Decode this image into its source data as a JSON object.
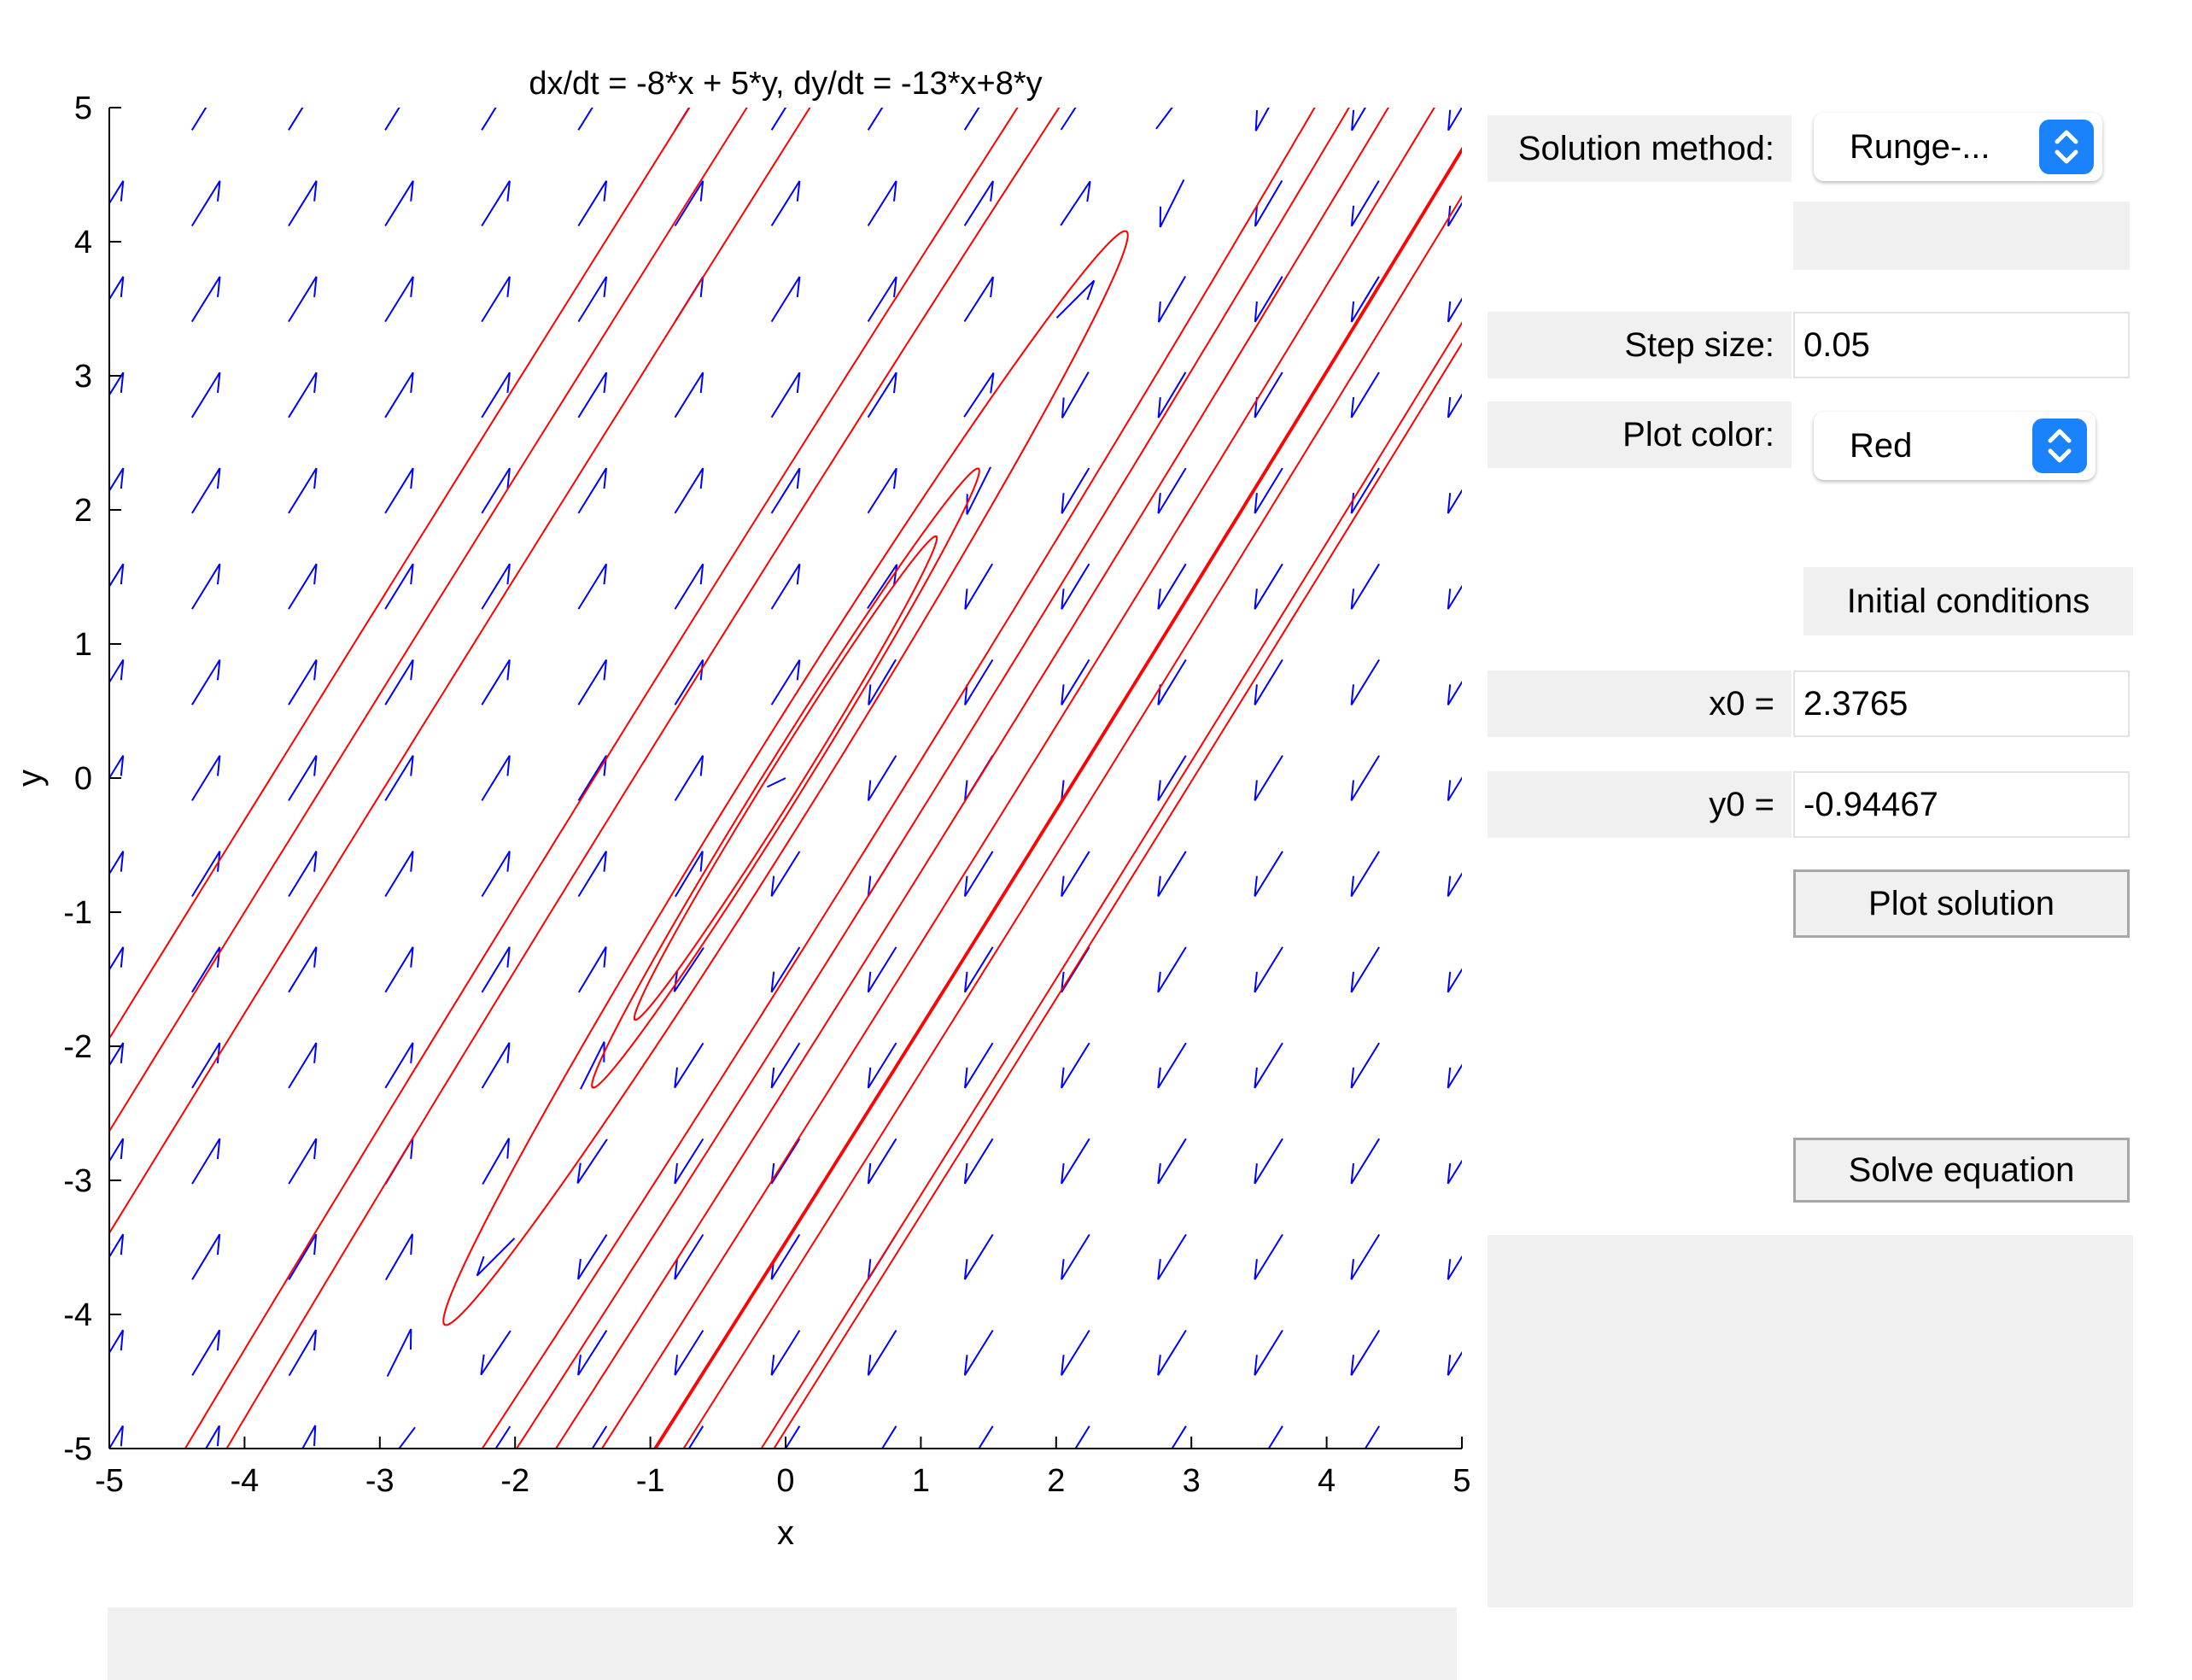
{
  "chart_data": {
    "type": "line",
    "subtype": "phase-portrait",
    "title": "dx/dt = -8*x + 5*y, dy/dt = -13*x+8*y",
    "xlabel": "x",
    "ylabel": "y",
    "xlim": [
      -5,
      5
    ],
    "ylim": [
      -5,
      5
    ],
    "x_ticks": [
      "-5",
      "-4",
      "-3",
      "-2",
      "-1",
      "0",
      "1",
      "2",
      "3",
      "4",
      "5"
    ],
    "y_ticks": [
      "5",
      "4",
      "3",
      "2",
      "1",
      "0",
      "-1",
      "-2",
      "-3",
      "-4",
      "-5"
    ],
    "system": {
      "a": -8,
      "b": 5,
      "c": -13,
      "d": 8
    },
    "field_color": "#0000ff",
    "solution_color": "#ff0000",
    "grid": false,
    "initial_conditions": [
      [
        2.4,
        0.4
      ],
      [
        1.8,
        0.6
      ],
      [
        1.4,
        0.4
      ],
      [
        1.7,
        -0.1
      ],
      [
        2.6,
        0.4
      ],
      [
        3.2,
        0.3
      ],
      [
        0.8,
        0.8
      ],
      [
        -1.4,
        -2.3
      ],
      [
        0.3,
        -1.0
      ],
      [
        -0.5,
        -0.6
      ],
      [
        -2.8,
        0.2
      ],
      [
        -3.5,
        0.5
      ],
      [
        -4.0,
        -1.0
      ],
      [
        1.4,
        -1.2
      ],
      [
        2.8,
        -0.2
      ],
      [
        -1.0,
        0.2
      ],
      [
        -1.6,
        -0.3
      ]
    ]
  },
  "controls": {
    "solution_method_label": "Solution method:",
    "solution_method_value": "Runge-...",
    "step_size_label": "Step size:",
    "step_size_value": "0.05",
    "plot_color_label": "Plot color:",
    "plot_color_value": "Red",
    "initial_conditions_heading": "Initial conditions",
    "x0_label": "x0 =",
    "x0_value": "2.3765",
    "y0_label": "y0 =",
    "y0_value": "-0.94467",
    "plot_solution_button": "Plot solution",
    "solve_equation_button": "Solve equation"
  }
}
